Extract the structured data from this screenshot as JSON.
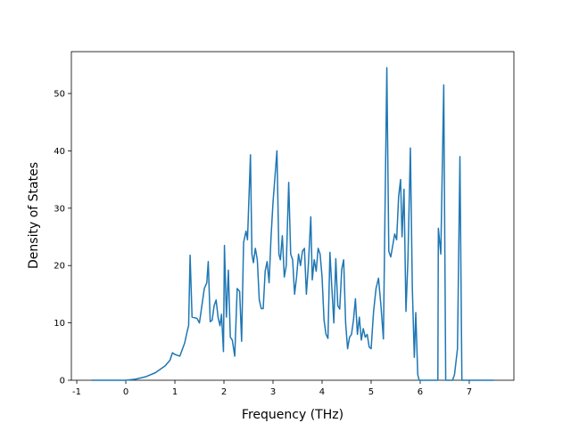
{
  "chart_data": {
    "type": "line",
    "x_label": "Frequency (THz)",
    "y_label": "Density of States",
    "xlim": [
      -1.11,
      7.91
    ],
    "ylim": [
      0,
      57.3
    ],
    "xticks": [
      -1,
      0,
      1,
      2,
      3,
      4,
      5,
      6,
      7
    ],
    "yticks": [
      0,
      10,
      20,
      30,
      40,
      50
    ],
    "series": [
      {
        "color": "#1f77b4",
        "x": [
          -0.7,
          0,
          0.2,
          0.4,
          0.6,
          0.8,
          0.9,
          0.95,
          1.0,
          1.1,
          1.2,
          1.25,
          1.28,
          1.31,
          1.35,
          1.45,
          1.5,
          1.55,
          1.6,
          1.65,
          1.68,
          1.72,
          1.76,
          1.8,
          1.84,
          1.88,
          1.92,
          1.95,
          1.99,
          2.01,
          2.05,
          2.09,
          2.13,
          2.17,
          2.22,
          2.27,
          2.32,
          2.36,
          2.4,
          2.45,
          2.48,
          2.54,
          2.57,
          2.6,
          2.64,
          2.68,
          2.72,
          2.76,
          2.8,
          2.84,
          2.88,
          2.92,
          2.96,
          3.0,
          3.08,
          3.12,
          3.15,
          3.19,
          3.23,
          3.27,
          3.32,
          3.36,
          3.4,
          3.44,
          3.48,
          3.52,
          3.56,
          3.6,
          3.64,
          3.68,
          3.72,
          3.77,
          3.8,
          3.84,
          3.88,
          3.92,
          3.96,
          4.0,
          4.04,
          4.08,
          4.12,
          4.16,
          4.2,
          4.24,
          4.28,
          4.32,
          4.36,
          4.4,
          4.44,
          4.48,
          4.52,
          4.56,
          4.6,
          4.64,
          4.68,
          4.72,
          4.76,
          4.8,
          4.84,
          4.88,
          4.92,
          4.96,
          5.0,
          5.05,
          5.1,
          5.15,
          5.2,
          5.25,
          5.32,
          5.36,
          5.4,
          5.45,
          5.48,
          5.52,
          5.56,
          5.6,
          5.63,
          5.67,
          5.71,
          5.75,
          5.8,
          5.84,
          5.88,
          5.91,
          5.95,
          5.98,
          6.36,
          6.37,
          6.42,
          6.48,
          6.52,
          6.66,
          6.7,
          6.76,
          6.81,
          6.85,
          7.5
        ],
        "values": [
          0,
          0,
          0.2,
          0.6,
          1.3,
          2.5,
          3.5,
          4.8,
          4.5,
          4.2,
          6.5,
          8.5,
          9.5,
          21.8,
          11,
          10.8,
          10,
          13,
          16,
          17,
          20.7,
          10.2,
          10.5,
          13,
          14,
          11,
          9.5,
          11.5,
          5,
          23.5,
          11,
          19.2,
          7.5,
          7,
          4.2,
          16,
          15.5,
          6.8,
          24,
          26,
          24.5,
          39.3,
          22,
          20.5,
          23,
          21,
          14,
          12.5,
          12.5,
          19,
          20.7,
          17,
          25,
          31,
          40,
          22,
          21,
          25.2,
          18,
          20,
          34.5,
          22,
          21,
          15,
          18,
          22,
          20,
          22.5,
          23,
          15,
          20,
          28.5,
          17.5,
          21,
          19,
          23,
          22,
          18,
          10.5,
          8,
          7.3,
          22.3,
          16,
          10,
          21.2,
          13,
          12.4,
          19.3,
          21,
          10,
          5.5,
          7.5,
          8,
          10.5,
          14.2,
          8,
          11,
          7,
          9,
          7.5,
          8,
          5.8,
          5.5,
          12,
          16,
          17.8,
          13,
          7.2,
          54.5,
          22.5,
          21.5,
          24,
          25.5,
          24.5,
          32,
          35,
          25,
          33.3,
          12,
          21,
          40.5,
          16,
          4,
          11.8,
          1,
          0,
          0,
          26.5,
          22,
          51.5,
          0,
          0,
          1,
          5.5,
          39,
          0,
          0
        ]
      }
    ]
  }
}
